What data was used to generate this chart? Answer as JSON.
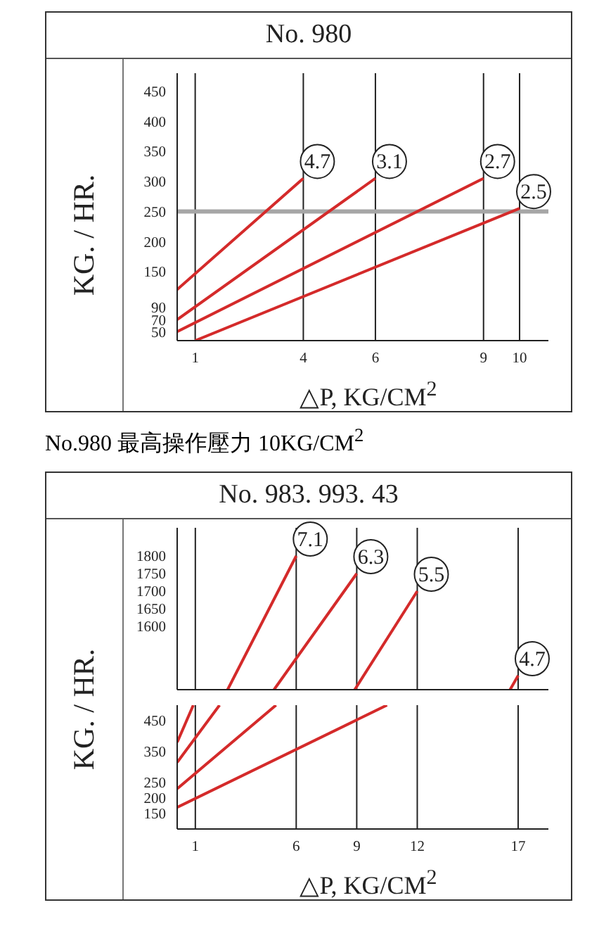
{
  "chart_data": [
    {
      "type": "line",
      "title": "No. 980",
      "xlabel": "△P,  KG/CM$^{2}$",
      "ylabel": "KG. / HR.",
      "annotations": [
        "No.980  最高操作壓力  10KG/CM$^{2}$"
      ],
      "xlim": [
        0.5,
        10.8
      ],
      "xticks": [
        1,
        4,
        6,
        9,
        10
      ],
      "ylim": [
        35,
        480
      ],
      "yticks": [
        50,
        70,
        90,
        150,
        200,
        250,
        300,
        350,
        400,
        450
      ],
      "grid": true,
      "ref_lines": [
        {
          "axis": "y",
          "value": 250,
          "color": "#a6a6a6"
        }
      ],
      "series": [
        {
          "name": "4.7",
          "color": "#d42a2a",
          "x": [
            0.5,
            4
          ],
          "values": [
            120,
            305
          ]
        },
        {
          "name": "3.1",
          "color": "#d42a2a",
          "x": [
            0.5,
            6
          ],
          "values": [
            70,
            305
          ]
        },
        {
          "name": "2.7",
          "color": "#d42a2a",
          "x": [
            0.5,
            9
          ],
          "values": [
            50,
            305
          ]
        },
        {
          "name": "2.5",
          "color": "#d42a2a",
          "x": [
            1,
            10
          ],
          "values": [
            35,
            255
          ]
        }
      ]
    },
    {
      "type": "line",
      "title": "No. 983.  993.  43",
      "ylabel": "KG. / HR.",
      "xlim": [
        0.1,
        18.5
      ],
      "xticks": [
        1,
        6,
        9,
        12,
        17
      ],
      "ylim": [
        1420,
        1880
      ],
      "yticks": [
        1600,
        1650,
        1700,
        1750,
        1800
      ],
      "grid": true,
      "tick_labels": "y",
      "series": [
        {
          "name": "7.1",
          "color": "#d42a2a",
          "x": [
            2.6,
            6
          ],
          "values": [
            1420,
            1800
          ]
        },
        {
          "name": "6.3",
          "color": "#d42a2a",
          "x": [
            4.9,
            9
          ],
          "values": [
            1420,
            1750
          ]
        },
        {
          "name": "5.5",
          "color": "#d42a2a",
          "x": [
            8.9,
            12
          ],
          "values": [
            1420,
            1700
          ]
        },
        {
          "name": "4.7",
          "color": "#d42a2a",
          "x": [
            16.6,
            17
          ],
          "values": [
            1420,
            1460
          ]
        }
      ]
    },
    {
      "type": "line",
      "xlabel": "△P,  KG/CM$^{2}$",
      "xlim": [
        0.1,
        18.5
      ],
      "xticks": [
        1,
        6,
        9,
        12,
        17
      ],
      "ylim": [
        100,
        500
      ],
      "yticks": [
        150,
        200,
        250,
        350,
        450
      ],
      "grid": true,
      "series": [
        {
          "color": "#d42a2a",
          "x": [
            0.1,
            0.9
          ],
          "values": [
            380,
            500
          ]
        },
        {
          "color": "#d42a2a",
          "x": [
            0.1,
            2.2
          ],
          "values": [
            315,
            500
          ]
        },
        {
          "color": "#d42a2a",
          "x": [
            0.1,
            5.0
          ],
          "values": [
            230,
            500
          ]
        },
        {
          "color": "#d42a2a",
          "x": [
            0.1,
            10.5
          ],
          "values": [
            170,
            500
          ]
        }
      ]
    }
  ]
}
